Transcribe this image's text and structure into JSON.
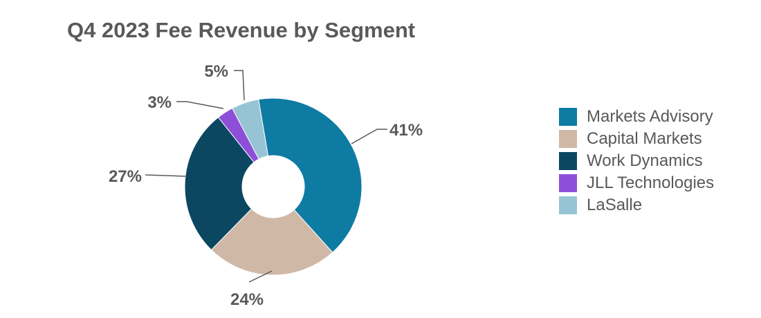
{
  "chart_data": {
    "type": "pie",
    "style": "donut",
    "title": "Q4 2023 Fee Revenue by Segment",
    "legend_position": "right",
    "series": [
      {
        "name": "Markets Advisory",
        "value": 41,
        "label": "41%",
        "color": "#0E7BA3"
      },
      {
        "name": "Capital Markets",
        "value": 24,
        "label": "24%",
        "color": "#D0B8A6"
      },
      {
        "name": "Work Dynamics",
        "value": 27,
        "label": "27%",
        "color": "#0B4760"
      },
      {
        "name": "JLL Technologies",
        "value": 3,
        "label": "3%",
        "color": "#8E4FD8"
      },
      {
        "name": "LaSalle",
        "value": 5,
        "label": "5%",
        "color": "#97C4D4"
      }
    ]
  }
}
